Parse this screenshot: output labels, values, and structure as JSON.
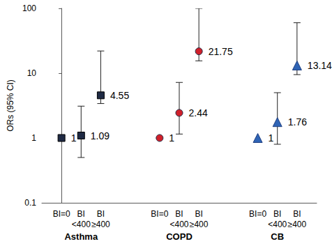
{
  "chart_data": {
    "type": "scatter",
    "y_label": "ORs (95% CI)",
    "categories": [
      "BI=0",
      "BI <400",
      "BI ≥400"
    ],
    "series": [
      {
        "name": "Asthma",
        "color": "#1f2a44",
        "marker": "square",
        "values": [
          1,
          1.09,
          4.55
        ],
        "ci_lower": [
          null,
          0.5,
          3.4
        ],
        "ci_upper": [
          null,
          3.1,
          22
        ]
      },
      {
        "name": "COPD",
        "color": "#d0202a",
        "marker": "circle",
        "values": [
          1,
          2.44,
          21.75
        ],
        "ci_lower": [
          null,
          1.15,
          15.5
        ],
        "ci_upper": [
          null,
          7.2,
          100
        ]
      },
      {
        "name": "CB",
        "color": "#2f64b5",
        "marker": "triangle",
        "values": [
          1,
          1.76,
          13.14
        ],
        "ci_lower": [
          null,
          0.8,
          9.5
        ],
        "ci_upper": [
          null,
          5,
          60
        ]
      }
    ],
    "ylim": [
      0.1,
      100
    ],
    "yticks": [
      0.1,
      1,
      10,
      100
    ],
    "log": "y",
    "grid": false,
    "data_labels": true
  }
}
